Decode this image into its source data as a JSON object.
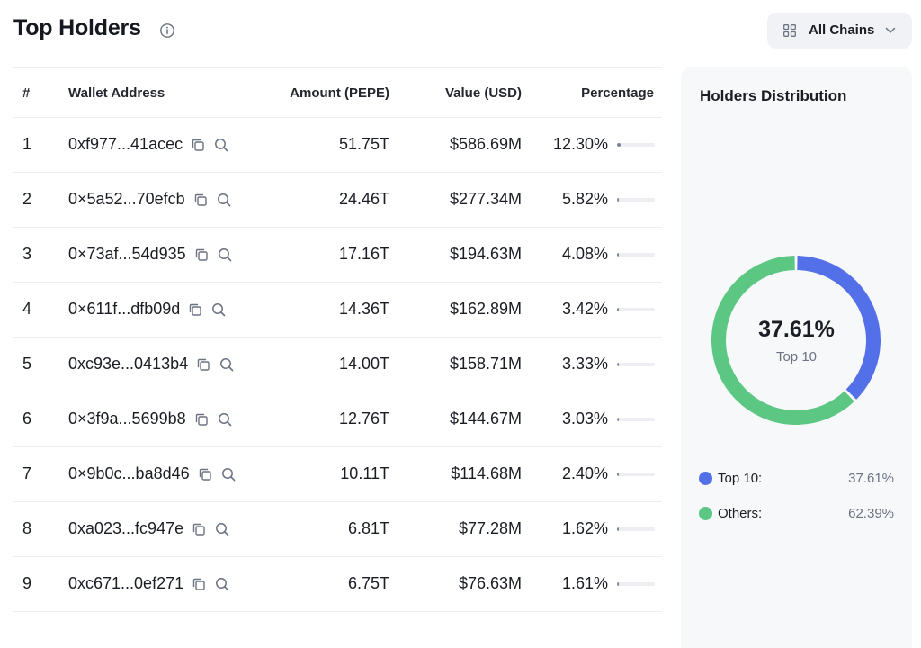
{
  "header": {
    "title": "Top Holders",
    "chains_button_label": "All Chains"
  },
  "table": {
    "columns": [
      "#",
      "Wallet Address",
      "Amount (PEPE)",
      "Value (USD)",
      "Percentage"
    ],
    "rows": [
      {
        "rank": "1",
        "address": "0xf977...41acec",
        "amount": "51.75T",
        "value": "$586.69M",
        "percentage": "12.30%",
        "pct": 12.3
      },
      {
        "rank": "2",
        "address": "0×5a52...70efcb",
        "amount": "24.46T",
        "value": "$277.34M",
        "percentage": "5.82%",
        "pct": 5.82
      },
      {
        "rank": "3",
        "address": "0×73af...54d935",
        "amount": "17.16T",
        "value": "$194.63M",
        "percentage": "4.08%",
        "pct": 4.08
      },
      {
        "rank": "4",
        "address": "0×611f...dfb09d",
        "amount": "14.36T",
        "value": "$162.89M",
        "percentage": "3.42%",
        "pct": 3.42
      },
      {
        "rank": "5",
        "address": "0xc93e...0413b4",
        "amount": "14.00T",
        "value": "$158.71M",
        "percentage": "3.33%",
        "pct": 3.33
      },
      {
        "rank": "6",
        "address": "0×3f9a...5699b8",
        "amount": "12.76T",
        "value": "$144.67M",
        "percentage": "3.03%",
        "pct": 3.03
      },
      {
        "rank": "7",
        "address": "0×9b0c...ba8d46",
        "amount": "10.11T",
        "value": "$114.68M",
        "percentage": "2.40%",
        "pct": 2.4
      },
      {
        "rank": "8",
        "address": "0xa023...fc947e",
        "amount": "6.81T",
        "value": "$77.28M",
        "percentage": "1.62%",
        "pct": 1.62
      },
      {
        "rank": "9",
        "address": "0xc671...0ef271",
        "amount": "6.75T",
        "value": "$76.63M",
        "percentage": "1.61%",
        "pct": 1.61
      }
    ]
  },
  "distribution": {
    "title": "Holders Distribution",
    "center_value": "37.61%",
    "center_label": "Top 10",
    "top10_fraction": 0.3761,
    "legend": [
      {
        "label": "Top 10:",
        "value": "37.61%",
        "color": "#5470e8"
      },
      {
        "label": "Others:",
        "value": "62.39%",
        "color": "#5cc683"
      }
    ]
  },
  "colors": {
    "accent_blue": "#5470e8",
    "accent_green": "#5cc683",
    "bar_fill": "#7c8290"
  },
  "icons": [
    "info-icon",
    "grid-icon",
    "chevron-down-icon",
    "copy-icon",
    "search-icon"
  ]
}
